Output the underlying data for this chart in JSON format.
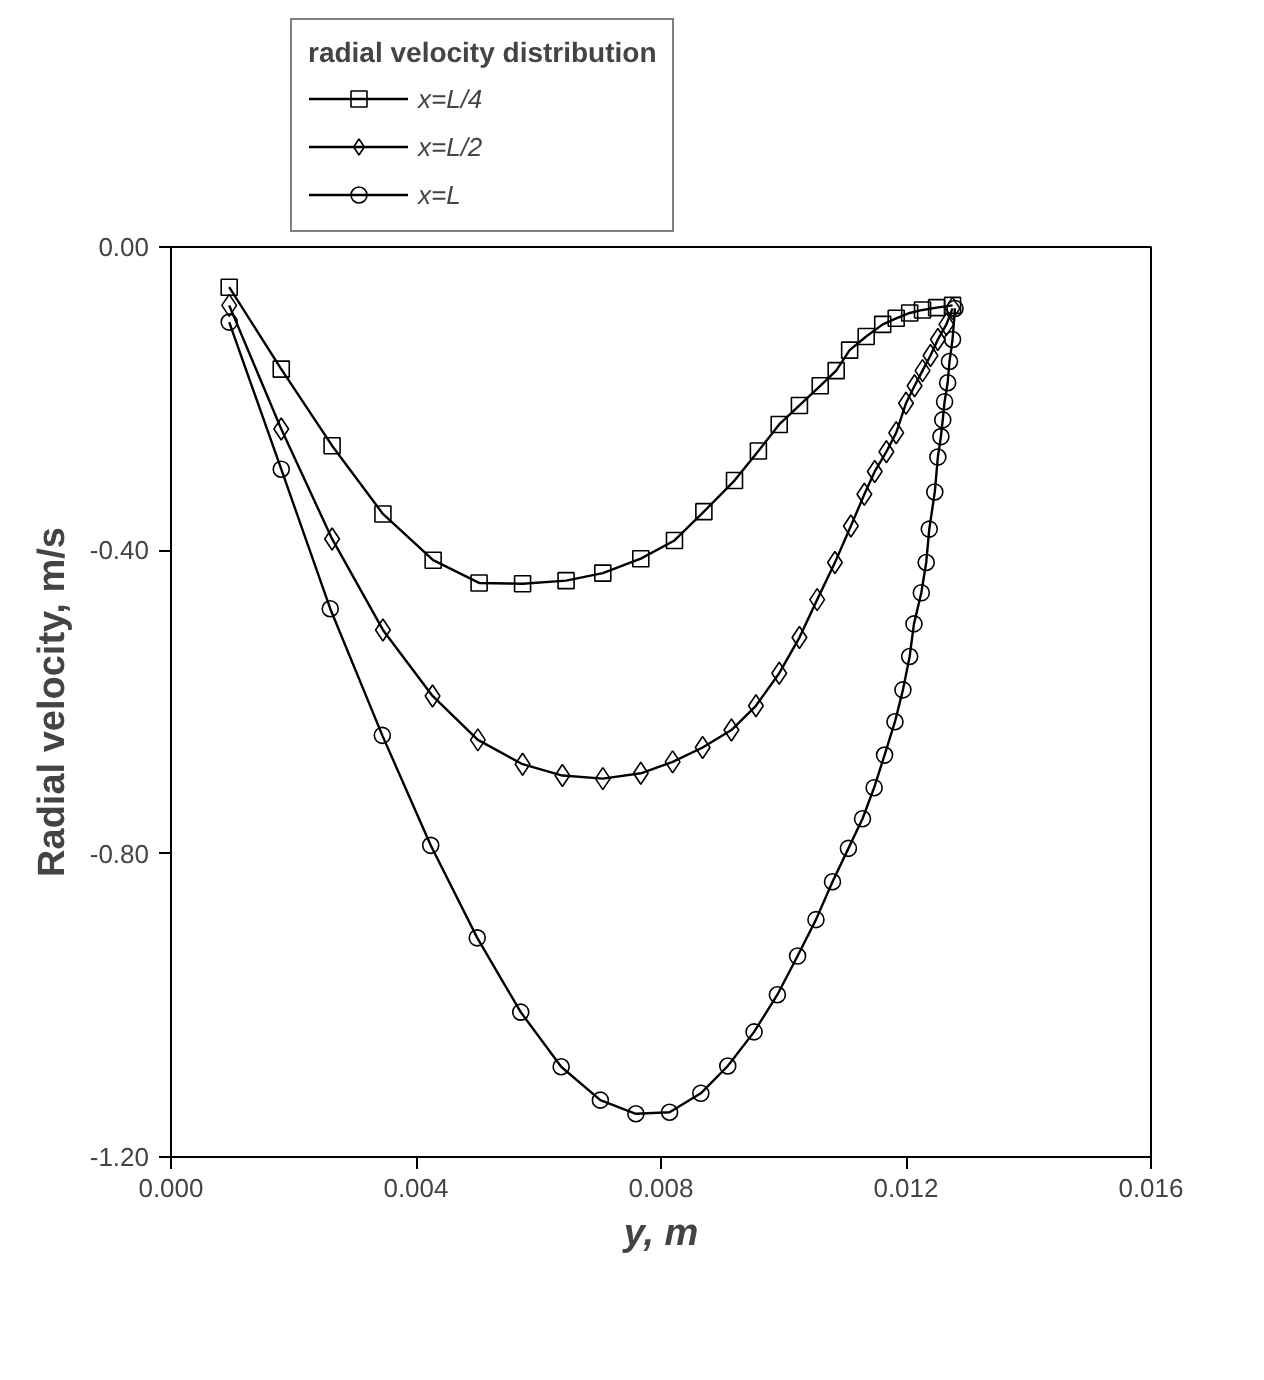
{
  "chart_data": {
    "type": "line",
    "xlabel": "y, m",
    "ylabel": "Radial velocity, m/s",
    "legend_title": "radial velocity distribution",
    "legend": "top",
    "grid": false,
    "line_style": "solid",
    "xlim": [
      0.0,
      0.016
    ],
    "xticks": [
      {
        "value": 0.0,
        "label": "0.000"
      },
      {
        "value": 0.004,
        "label": "0.004"
      },
      {
        "value": 0.008,
        "label": "0.008"
      },
      {
        "value": 0.012,
        "label": "0.012"
      },
      {
        "value": 0.016,
        "label": "0.016"
      }
    ],
    "ylim": [
      -1.2,
      0.0
    ],
    "yticks": [
      {
        "value": -1.2,
        "label": "-1.20"
      },
      {
        "value": -0.8,
        "label": "-0.80"
      },
      {
        "value": -0.4,
        "label": "-0.40"
      },
      {
        "value": 0.0,
        "label": "0.00"
      }
    ],
    "series": [
      {
        "name": "x=L/4",
        "color": "#000000",
        "marker": "square",
        "x": [
          0.00095,
          0.0018,
          0.00263,
          0.00346,
          0.00428,
          0.00503,
          0.00574,
          0.00645,
          0.00705,
          0.00767,
          0.00822,
          0.0087,
          0.0092,
          0.00959,
          0.00993,
          0.01026,
          0.0106,
          0.01086,
          0.01108,
          0.01135,
          0.01162,
          0.01184,
          0.01206,
          0.01227,
          0.0125,
          0.01276
        ],
        "values": [
          -0.053,
          -0.161,
          -0.262,
          -0.352,
          -0.413,
          -0.443,
          -0.444,
          -0.44,
          -0.43,
          -0.411,
          -0.387,
          -0.349,
          -0.308,
          -0.269,
          -0.234,
          -0.209,
          -0.183,
          -0.163,
          -0.136,
          -0.118,
          -0.102,
          -0.094,
          -0.087,
          -0.083,
          -0.08,
          -0.077
        ]
      },
      {
        "name": "x=L/2",
        "color": "#000000",
        "marker": "diamond",
        "x": [
          0.00095,
          0.0018,
          0.00263,
          0.00346,
          0.00427,
          0.00501,
          0.00574,
          0.00639,
          0.00705,
          0.00767,
          0.00819,
          0.00868,
          0.00915,
          0.00955,
          0.00993,
          0.01026,
          0.01055,
          0.01084,
          0.0111,
          0.01132,
          0.01149,
          0.01168,
          0.01184,
          0.012,
          0.01214,
          0.01227,
          0.0124,
          0.01252,
          0.01266,
          0.01276
        ],
        "values": [
          -0.077,
          -0.24,
          -0.385,
          -0.505,
          -0.592,
          -0.65,
          -0.682,
          -0.697,
          -0.701,
          -0.694,
          -0.679,
          -0.66,
          -0.637,
          -0.605,
          -0.562,
          -0.515,
          -0.465,
          -0.416,
          -0.368,
          -0.326,
          -0.296,
          -0.27,
          -0.245,
          -0.206,
          -0.183,
          -0.163,
          -0.143,
          -0.122,
          -0.102,
          -0.081
        ]
      },
      {
        "name": "x=L",
        "color": "#000000",
        "marker": "circle",
        "x": [
          0.00095,
          0.0018,
          0.0026,
          0.00345,
          0.00424,
          0.005,
          0.00571,
          0.00637,
          0.00701,
          0.00759,
          0.00814,
          0.00865,
          0.00909,
          0.00952,
          0.0099,
          0.01023,
          0.01053,
          0.0108,
          0.01106,
          0.01129,
          0.01148,
          0.01165,
          0.01182,
          0.01195,
          0.01206,
          0.01213,
          0.01225,
          0.01233,
          0.01238,
          0.01247,
          0.01252,
          0.01257,
          0.0126,
          0.01263,
          0.01268,
          0.01271,
          0.01276,
          0.0128
        ],
        "values": [
          -0.099,
          -0.293,
          -0.477,
          -0.644,
          -0.789,
          -0.911,
          -1.009,
          -1.081,
          -1.125,
          -1.143,
          -1.141,
          -1.116,
          -1.08,
          -1.035,
          -0.986,
          -0.935,
          -0.887,
          -0.837,
          -0.793,
          -0.754,
          -0.713,
          -0.67,
          -0.626,
          -0.584,
          -0.54,
          -0.497,
          -0.456,
          -0.416,
          -0.372,
          -0.323,
          -0.277,
          -0.25,
          -0.228,
          -0.204,
          -0.179,
          -0.151,
          -0.122,
          -0.081
        ]
      }
    ]
  }
}
